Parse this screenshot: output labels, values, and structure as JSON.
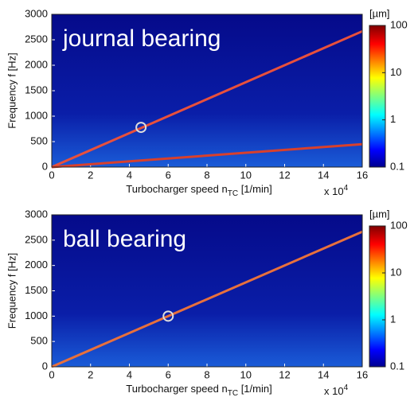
{
  "chart_data": [
    {
      "type": "spectrogram",
      "annotation": "journal bearing",
      "xlabel": "Turbocharger speed n",
      "xlabel_sub": "TC",
      "xlabel_unit": " [1/min]",
      "x_multiplier": "x 10",
      "x_multiplier_exp": "4",
      "ylabel": "Frequency f [Hz]",
      "xlim": [
        0,
        16
      ],
      "xticks": [
        0,
        2,
        4,
        6,
        8,
        10,
        12,
        14,
        16
      ],
      "ylim": [
        0,
        3000
      ],
      "yticks": [
        0,
        500,
        1000,
        1500,
        2000,
        2500,
        3000
      ],
      "x": [
        0,
        16
      ],
      "series": [
        {
          "color": "#e8503c",
          "values": [
            0,
            2667
          ]
        },
        {
          "color": "#d8402c",
          "values": [
            0,
            450
          ]
        }
      ],
      "marker": {
        "x": 4.6,
        "y": 780
      },
      "colorbar": {
        "label": "[µm]",
        "scale": "log",
        "colormap": "jet",
        "lim": [
          0.1,
          100
        ],
        "ticks": [
          0.1,
          1,
          10,
          100
        ]
      }
    },
    {
      "type": "spectrogram",
      "annotation": "ball bearing",
      "xlabel": "Turbocharger speed n",
      "xlabel_sub": "TC",
      "xlabel_unit": " [1/min]",
      "x_multiplier": "x 10",
      "x_multiplier_exp": "4",
      "ylabel": "Frequency f [Hz]",
      "xlim": [
        0,
        16
      ],
      "xticks": [
        0,
        2,
        4,
        6,
        8,
        10,
        12,
        14,
        16
      ],
      "ylim": [
        0,
        3000
      ],
      "yticks": [
        0,
        500,
        1000,
        1500,
        2000,
        2500,
        3000
      ],
      "x": [
        0,
        16
      ],
      "series": [
        {
          "color": "#e8703c",
          "values": [
            0,
            2667
          ]
        }
      ],
      "marker": {
        "x": 6.0,
        "y": 1000
      },
      "colorbar": {
        "label": "[µm]",
        "scale": "log",
        "colormap": "jet",
        "lim": [
          0.1,
          100
        ],
        "ticks": [
          0.1,
          1,
          10,
          100
        ]
      }
    }
  ]
}
